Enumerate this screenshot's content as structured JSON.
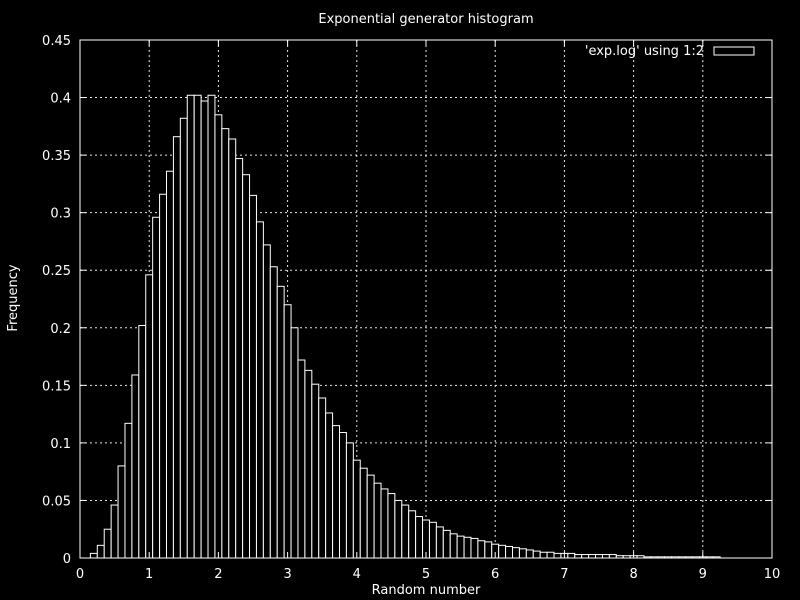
{
  "chart_data": {
    "type": "bar",
    "title": "Exponential generator histogram",
    "xlabel": "Random number",
    "ylabel": "Frequency",
    "xlim": [
      0,
      10
    ],
    "ylim": [
      0,
      0.45
    ],
    "xticks": [
      0,
      1,
      2,
      3,
      4,
      5,
      6,
      7,
      8,
      9,
      10
    ],
    "yticks": [
      0,
      0.05,
      0.1,
      0.15,
      0.2,
      0.25,
      0.3,
      0.35,
      0.4,
      0.45
    ],
    "grid": true,
    "legend_position": "top-right",
    "series": [
      {
        "name": "'exp.log' using 1:2",
        "bin_width": 0.1,
        "x": [
          0.2,
          0.3,
          0.4,
          0.5,
          0.6,
          0.7,
          0.8,
          0.9,
          1.0,
          1.1,
          1.2,
          1.3,
          1.4,
          1.5,
          1.6,
          1.7,
          1.8,
          1.9,
          2.0,
          2.1,
          2.2,
          2.3,
          2.4,
          2.5,
          2.6,
          2.7,
          2.8,
          2.9,
          3.0,
          3.1,
          3.2,
          3.3,
          3.4,
          3.5,
          3.6,
          3.7,
          3.8,
          3.9,
          4.0,
          4.1,
          4.2,
          4.3,
          4.4,
          4.5,
          4.6,
          4.7,
          4.8,
          4.9,
          5.0,
          5.1,
          5.2,
          5.3,
          5.4,
          5.5,
          5.6,
          5.7,
          5.8,
          5.9,
          6.0,
          6.1,
          6.2,
          6.3,
          6.4,
          6.5,
          6.6,
          6.7,
          6.8,
          6.9,
          7.0,
          7.1,
          7.2,
          7.3,
          7.4,
          7.5,
          7.6,
          7.7,
          7.8,
          7.9,
          8.0,
          8.1,
          8.2,
          8.3,
          8.4,
          8.5,
          8.6,
          8.7,
          8.8,
          8.9,
          9.0,
          9.1,
          9.2
        ],
        "values": [
          0.004,
          0.011,
          0.025,
          0.046,
          0.08,
          0.117,
          0.159,
          0.202,
          0.246,
          0.296,
          0.316,
          0.336,
          0.366,
          0.382,
          0.402,
          0.402,
          0.397,
          0.402,
          0.385,
          0.373,
          0.364,
          0.347,
          0.333,
          0.315,
          0.292,
          0.272,
          0.253,
          0.236,
          0.22,
          0.2,
          0.172,
          0.163,
          0.151,
          0.139,
          0.126,
          0.115,
          0.109,
          0.1,
          0.085,
          0.078,
          0.072,
          0.065,
          0.06,
          0.056,
          0.05,
          0.046,
          0.041,
          0.036,
          0.033,
          0.031,
          0.027,
          0.024,
          0.021,
          0.019,
          0.018,
          0.017,
          0.015,
          0.014,
          0.012,
          0.011,
          0.01,
          0.009,
          0.008,
          0.007,
          0.006,
          0.005,
          0.005,
          0.004,
          0.004,
          0.004,
          0.003,
          0.003,
          0.003,
          0.003,
          0.003,
          0.003,
          0.002,
          0.002,
          0.002,
          0.002,
          0.001,
          0.001,
          0.001,
          0.001,
          0.001,
          0.001,
          0.001,
          0.001,
          0.001,
          0.001,
          0.001
        ]
      }
    ]
  }
}
